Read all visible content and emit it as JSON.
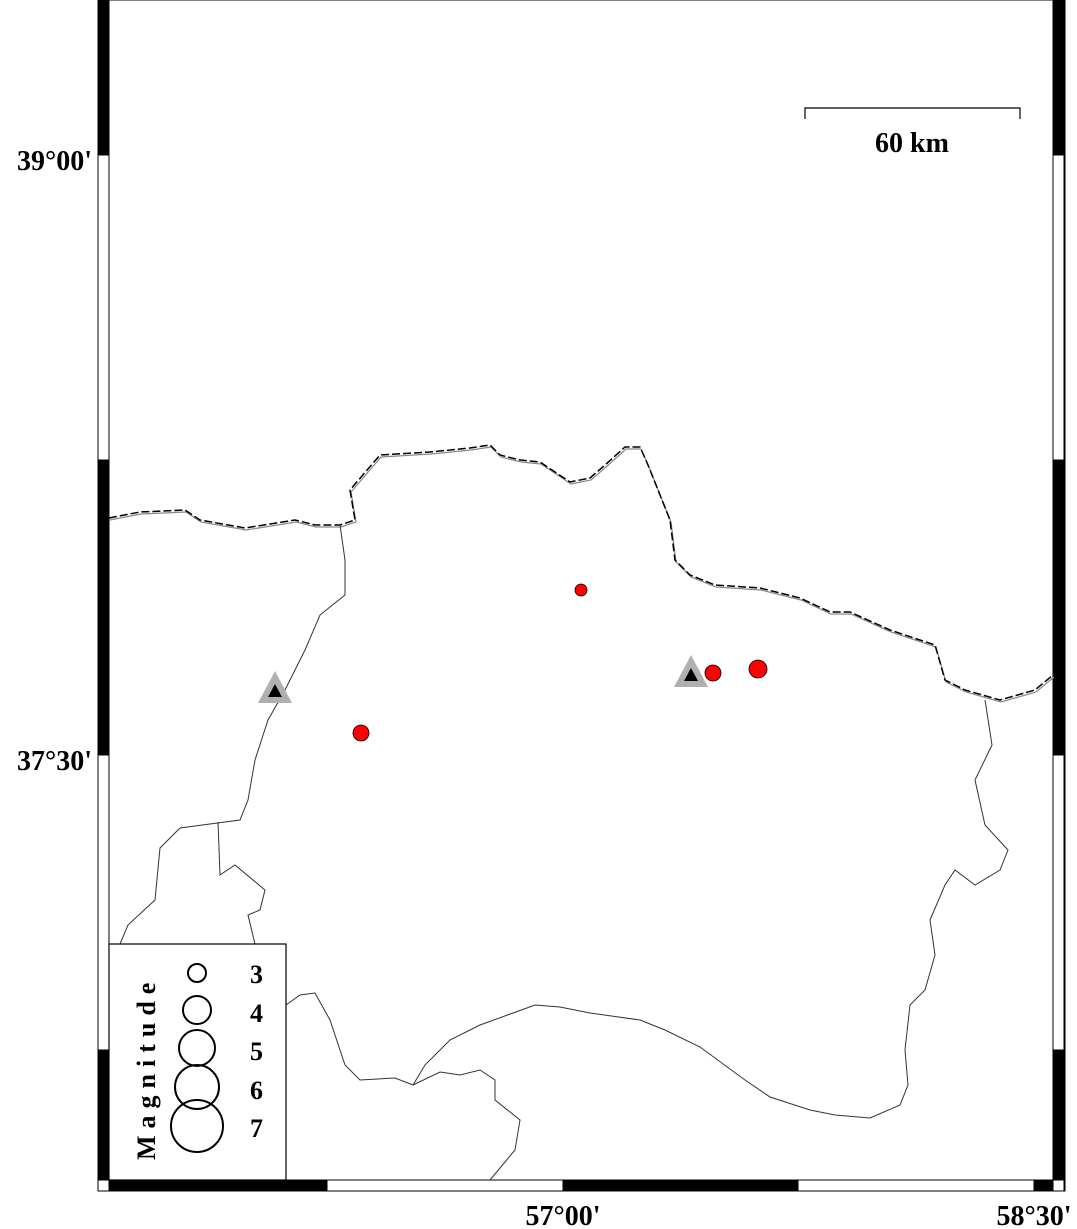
{
  "map": {
    "lat_labels": [
      "39°00'",
      "37°30'"
    ],
    "lon_labels": [
      "57°00'",
      "58°30'"
    ],
    "scale_bar": {
      "label": "60 km"
    },
    "legend": {
      "title": "Magnitude",
      "magnitudes": [
        "3",
        "4",
        "5",
        "6",
        "7"
      ]
    },
    "colors": {
      "earthquake": "#ff0000",
      "station_outer": "#b0b0b0",
      "station_inner": "#000000",
      "border": "#000000"
    },
    "symbols": {
      "earthquake": "red-filled-circle",
      "station": "gray-triangle-with-black-triangle"
    }
  }
}
